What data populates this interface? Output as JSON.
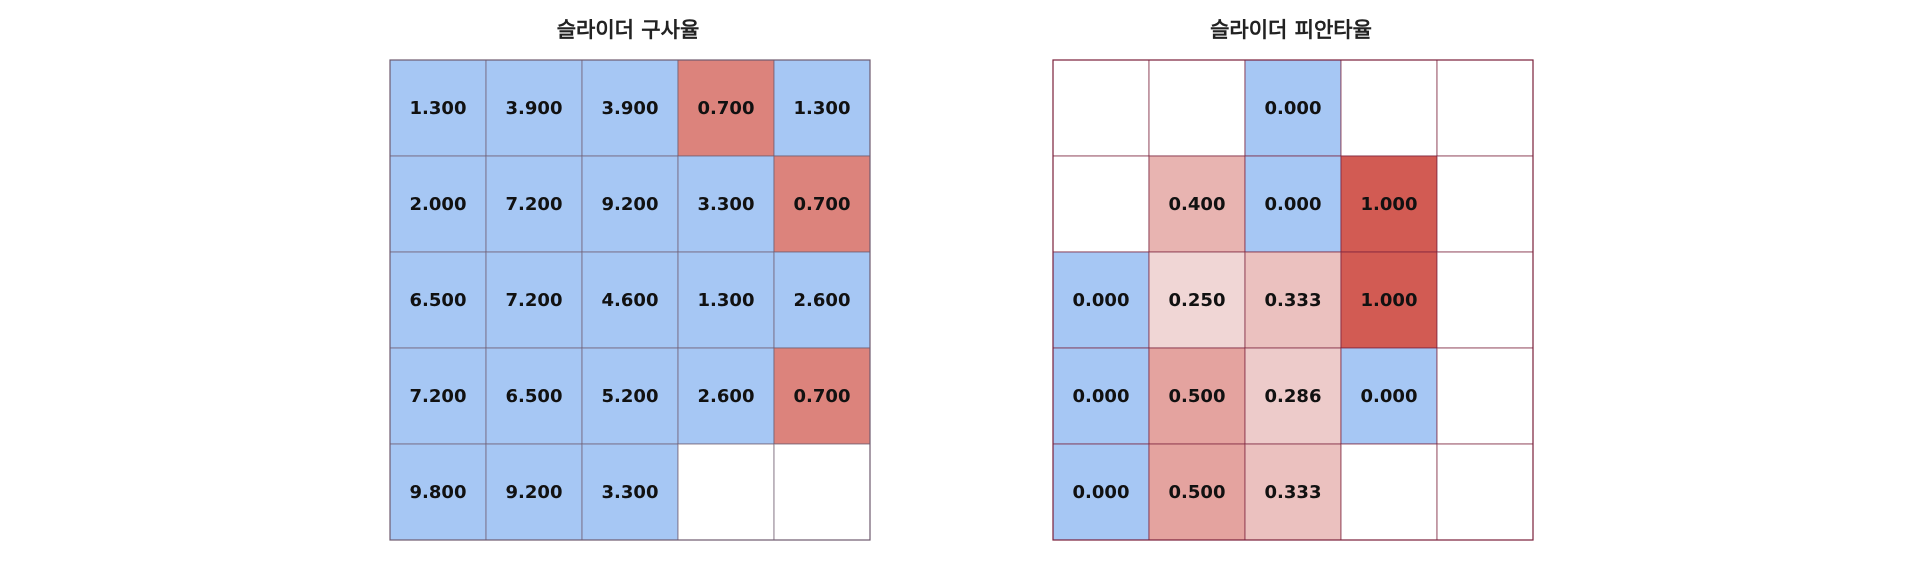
{
  "chart_data": [
    {
      "type": "heatmap",
      "title": "슬라이더 구사율",
      "rows": 5,
      "cols": 5,
      "colors": {
        "above_threshold": "#a6c7f4",
        "below_threshold": "#dc837c",
        "empty": "#ffffff",
        "grid_line": "#6e5a6e"
      },
      "values": [
        [
          1.3,
          3.9,
          3.9,
          0.7,
          1.3
        ],
        [
          2.0,
          7.2,
          9.2,
          3.3,
          0.7
        ],
        [
          6.5,
          7.2,
          4.6,
          1.3,
          2.6
        ],
        [
          7.2,
          6.5,
          5.2,
          2.6,
          0.7
        ],
        [
          9.8,
          9.2,
          3.3,
          null,
          null
        ]
      ],
      "labels": [
        [
          "1.300",
          "3.900",
          "3.900",
          "0.700",
          "1.300"
        ],
        [
          "2.000",
          "7.200",
          "9.200",
          "3.300",
          "0.700"
        ],
        [
          "6.500",
          "7.200",
          "4.600",
          "1.300",
          "2.600"
        ],
        [
          "7.200",
          "6.500",
          "5.200",
          "2.600",
          "0.700"
        ],
        [
          "9.800",
          "9.200",
          "3.300",
          "",
          ""
        ]
      ],
      "grid": true
    },
    {
      "type": "heatmap",
      "title": "슬라이더 피안타율",
      "rows": 5,
      "cols": 5,
      "colors": {
        "zero": "#a6c7f4",
        "low": "#f0d6d5",
        "high": "#d25b53",
        "empty": "#ffffff",
        "grid_line": "#7a1f3a"
      },
      "values": [
        [
          null,
          null,
          0.0,
          null,
          null
        ],
        [
          null,
          0.4,
          0.0,
          1.0,
          null
        ],
        [
          0.0,
          0.25,
          0.333,
          1.0,
          null
        ],
        [
          0.0,
          0.5,
          0.286,
          0.0,
          null
        ],
        [
          0.0,
          0.5,
          0.333,
          null,
          null
        ]
      ],
      "labels": [
        [
          "",
          "",
          "0.000",
          "",
          ""
        ],
        [
          "",
          "0.400",
          "0.000",
          "1.000",
          ""
        ],
        [
          "0.000",
          "0.250",
          "0.333",
          "1.000",
          ""
        ],
        [
          "0.000",
          "0.500",
          "0.286",
          "0.000",
          ""
        ],
        [
          "0.000",
          "0.500",
          "0.333",
          "",
          ""
        ]
      ],
      "grid": true
    }
  ]
}
